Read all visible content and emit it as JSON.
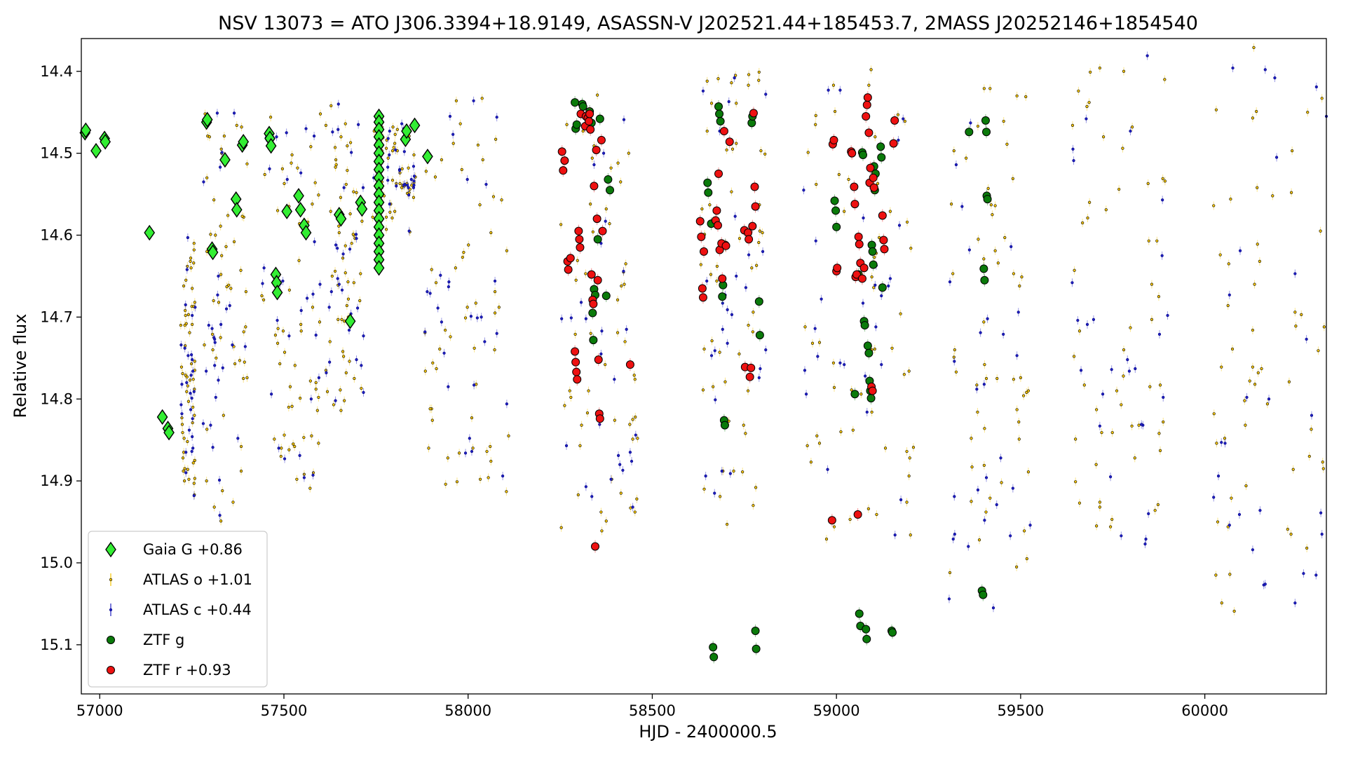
{
  "chart_data": {
    "type": "scatter",
    "title": "NSV 13073 = ATO J306.3394+18.9149, ASASSN-V J202521.44+185453.7, 2MASS J20252146+1854540",
    "xlabel": "HJD - 2400000.5",
    "ylabel": "Relative flux",
    "xlim": [
      56950,
      60330
    ],
    "ylim": [
      15.16,
      14.36
    ],
    "y_inverted": true,
    "x_ticks": [
      57000,
      57500,
      58000,
      58500,
      59000,
      59500,
      60000
    ],
    "x_tick_labels": [
      "57000",
      "57500",
      "58000",
      "58500",
      "59000",
      "59500",
      "60000"
    ],
    "y_ticks": [
      14.4,
      14.5,
      14.6,
      14.7,
      14.8,
      14.9,
      15.0,
      15.1
    ],
    "y_tick_labels": [
      "14.4",
      "14.5",
      "14.6",
      "14.7",
      "14.8",
      "14.9",
      "15.0",
      "15.1"
    ],
    "grid": false,
    "legend_position": "lower-left",
    "series": [
      {
        "name": "Gaia G +0.86",
        "marker": "diamond",
        "color": "#33ee33",
        "edge": "#000000",
        "points": [
          [
            56960,
            14.475
          ],
          [
            56962,
            14.472
          ],
          [
            56990,
            14.497
          ],
          [
            57013,
            14.482
          ],
          [
            57015,
            14.486
          ],
          [
            57135,
            14.597
          ],
          [
            57170,
            14.822
          ],
          [
            57185,
            14.836
          ],
          [
            57188,
            14.841
          ],
          [
            57290,
            14.462
          ],
          [
            57292,
            14.459
          ],
          [
            57305,
            14.617
          ],
          [
            57307,
            14.621
          ],
          [
            57340,
            14.508
          ],
          [
            57370,
            14.556
          ],
          [
            57372,
            14.569
          ],
          [
            57387,
            14.49
          ],
          [
            57390,
            14.486
          ],
          [
            57460,
            14.476
          ],
          [
            57462,
            14.482
          ],
          [
            57465,
            14.491
          ],
          [
            57478,
            14.648
          ],
          [
            57480,
            14.658
          ],
          [
            57482,
            14.67
          ],
          [
            57508,
            14.571
          ],
          [
            57540,
            14.552
          ],
          [
            57545,
            14.569
          ],
          [
            57555,
            14.588
          ],
          [
            57560,
            14.597
          ],
          [
            57650,
            14.575
          ],
          [
            57655,
            14.58
          ],
          [
            57680,
            14.705
          ],
          [
            57708,
            14.56
          ],
          [
            57712,
            14.568
          ],
          [
            57758,
            14.455
          ],
          [
            57758,
            14.462
          ],
          [
            57758,
            14.471
          ],
          [
            57758,
            14.48
          ],
          [
            57758,
            14.49
          ],
          [
            57758,
            14.5
          ],
          [
            57758,
            14.51
          ],
          [
            57758,
            14.52
          ],
          [
            57758,
            14.53
          ],
          [
            57758,
            14.54
          ],
          [
            57758,
            14.55
          ],
          [
            57758,
            14.56
          ],
          [
            57758,
            14.57
          ],
          [
            57758,
            14.58
          ],
          [
            57758,
            14.59
          ],
          [
            57758,
            14.6
          ],
          [
            57758,
            14.61
          ],
          [
            57758,
            14.62
          ],
          [
            57758,
            14.63
          ],
          [
            57758,
            14.64
          ],
          [
            57830,
            14.483
          ],
          [
            57833,
            14.473
          ],
          [
            57855,
            14.466
          ],
          [
            57890,
            14.504
          ]
        ]
      },
      {
        "name": "ATLAS o +1.01",
        "marker": "dot",
        "color": "#f5c400",
        "edge": "#000000",
        "points": []
      },
      {
        "name": "ATLAS c +0.44",
        "marker": "dot",
        "color": "#2020c0",
        "edge": "#000080",
        "points": []
      },
      {
        "name": "ZTF g",
        "marker": "circle",
        "color": "#0a7a0a",
        "edge": "#000000",
        "points": [
          [
            58290,
            14.438
          ],
          [
            58292,
            14.47
          ],
          [
            58295,
            14.465
          ],
          [
            58310,
            14.44
          ],
          [
            58312,
            14.443
          ],
          [
            58330,
            14.449
          ],
          [
            58335,
            14.463
          ],
          [
            58338,
            14.695
          ],
          [
            58340,
            14.728
          ],
          [
            58342,
            14.666
          ],
          [
            58345,
            14.673
          ],
          [
            58352,
            14.605
          ],
          [
            58358,
            14.458
          ],
          [
            58375,
            14.674
          ],
          [
            58380,
            14.532
          ],
          [
            58385,
            14.545
          ],
          [
            58650,
            14.536
          ],
          [
            58652,
            14.548
          ],
          [
            58660,
            14.586
          ],
          [
            58665,
            15.103
          ],
          [
            58667,
            15.115
          ],
          [
            58680,
            14.443
          ],
          [
            58682,
            14.452
          ],
          [
            58685,
            14.461
          ],
          [
            58690,
            14.675
          ],
          [
            58692,
            14.661
          ],
          [
            58695,
            14.826
          ],
          [
            58697,
            14.832
          ],
          [
            58698,
            14.612
          ],
          [
            58770,
            14.463
          ],
          [
            58772,
            14.455
          ],
          [
            58780,
            15.083
          ],
          [
            58782,
            15.105
          ],
          [
            58790,
            14.681
          ],
          [
            58792,
            14.722
          ],
          [
            58995,
            14.558
          ],
          [
            58998,
            14.57
          ],
          [
            59000,
            14.59
          ],
          [
            59050,
            14.794
          ],
          [
            59060,
            14.648
          ],
          [
            59062,
            15.062
          ],
          [
            59065,
            15.077
          ],
          [
            59070,
            14.499
          ],
          [
            59072,
            14.502
          ],
          [
            59075,
            14.705
          ],
          [
            59077,
            14.71
          ],
          [
            59080,
            15.081
          ],
          [
            59082,
            15.093
          ],
          [
            59085,
            14.735
          ],
          [
            59088,
            14.744
          ],
          [
            59090,
            14.778
          ],
          [
            59092,
            14.79
          ],
          [
            59094,
            14.799
          ],
          [
            59096,
            14.612
          ],
          [
            59098,
            14.62
          ],
          [
            59100,
            14.636
          ],
          [
            59102,
            14.516
          ],
          [
            59104,
            14.545
          ],
          [
            59106,
            14.525
          ],
          [
            59120,
            14.492
          ],
          [
            59122,
            14.505
          ],
          [
            59125,
            14.664
          ],
          [
            59150,
            15.083
          ],
          [
            59152,
            15.085
          ],
          [
            59360,
            14.474
          ],
          [
            59395,
            15.034
          ],
          [
            59398,
            15.039
          ],
          [
            59400,
            14.641
          ],
          [
            59402,
            14.655
          ],
          [
            59405,
            14.46
          ],
          [
            59407,
            14.474
          ],
          [
            59408,
            14.552
          ],
          [
            59410,
            14.556
          ]
        ]
      },
      {
        "name": "ZTF r +0.93",
        "marker": "circle",
        "color": "#ee1111",
        "edge": "#000000",
        "points": [
          [
            58255,
            14.498
          ],
          [
            58258,
            14.521
          ],
          [
            58262,
            14.509
          ],
          [
            58270,
            14.632
          ],
          [
            58272,
            14.642
          ],
          [
            58278,
            14.628
          ],
          [
            58290,
            14.742
          ],
          [
            58292,
            14.755
          ],
          [
            58294,
            14.767
          ],
          [
            58296,
            14.776
          ],
          [
            58300,
            14.595
          ],
          [
            58302,
            14.605
          ],
          [
            58304,
            14.615
          ],
          [
            58306,
            14.452
          ],
          [
            58318,
            14.467
          ],
          [
            58320,
            14.455
          ],
          [
            58325,
            14.457
          ],
          [
            58328,
            14.461
          ],
          [
            58330,
            14.452
          ],
          [
            58332,
            14.471
          ],
          [
            58335,
            14.648
          ],
          [
            58338,
            14.679
          ],
          [
            58340,
            14.684
          ],
          [
            58342,
            14.54
          ],
          [
            58345,
            14.98
          ],
          [
            58348,
            14.496
          ],
          [
            58350,
            14.58
          ],
          [
            58352,
            14.655
          ],
          [
            58354,
            14.752
          ],
          [
            58356,
            14.818
          ],
          [
            58358,
            14.824
          ],
          [
            58362,
            14.484
          ],
          [
            58365,
            14.595
          ],
          [
            58440,
            14.758
          ],
          [
            58630,
            14.583
          ],
          [
            58633,
            14.602
          ],
          [
            58636,
            14.665
          ],
          [
            58638,
            14.676
          ],
          [
            58640,
            14.62
          ],
          [
            58672,
            14.582
          ],
          [
            58675,
            14.57
          ],
          [
            58678,
            14.588
          ],
          [
            58680,
            14.525
          ],
          [
            58683,
            14.618
          ],
          [
            58688,
            14.61
          ],
          [
            58690,
            14.653
          ],
          [
            58695,
            14.473
          ],
          [
            58700,
            14.613
          ],
          [
            58710,
            14.486
          ],
          [
            58750,
            14.594
          ],
          [
            58752,
            14.761
          ],
          [
            58760,
            14.597
          ],
          [
            58762,
            14.605
          ],
          [
            58765,
            14.773
          ],
          [
            58768,
            14.762
          ],
          [
            58772,
            14.589
          ],
          [
            58775,
            14.451
          ],
          [
            58778,
            14.541
          ],
          [
            58780,
            14.565
          ],
          [
            58988,
            14.948
          ],
          [
            58990,
            14.489
          ],
          [
            58993,
            14.484
          ],
          [
            59000,
            14.644
          ],
          [
            59002,
            14.64
          ],
          [
            59040,
            14.498
          ],
          [
            59042,
            14.5
          ],
          [
            59048,
            14.541
          ],
          [
            59050,
            14.562
          ],
          [
            59052,
            14.651
          ],
          [
            59055,
            14.648
          ],
          [
            59058,
            14.941
          ],
          [
            59060,
            14.602
          ],
          [
            59062,
            14.611
          ],
          [
            59065,
            14.634
          ],
          [
            59070,
            14.653
          ],
          [
            59075,
            14.64
          ],
          [
            59080,
            14.455
          ],
          [
            59083,
            14.441
          ],
          [
            59085,
            14.432
          ],
          [
            59088,
            14.475
          ],
          [
            59090,
            14.536
          ],
          [
            59092,
            14.518
          ],
          [
            59095,
            14.785
          ],
          [
            59098,
            14.79
          ],
          [
            59100,
            14.53
          ],
          [
            59102,
            14.542
          ],
          [
            59125,
            14.576
          ],
          [
            59128,
            14.606
          ],
          [
            59130,
            14.617
          ],
          [
            59155,
            14.488
          ],
          [
            59158,
            14.46
          ]
        ]
      }
    ]
  }
}
